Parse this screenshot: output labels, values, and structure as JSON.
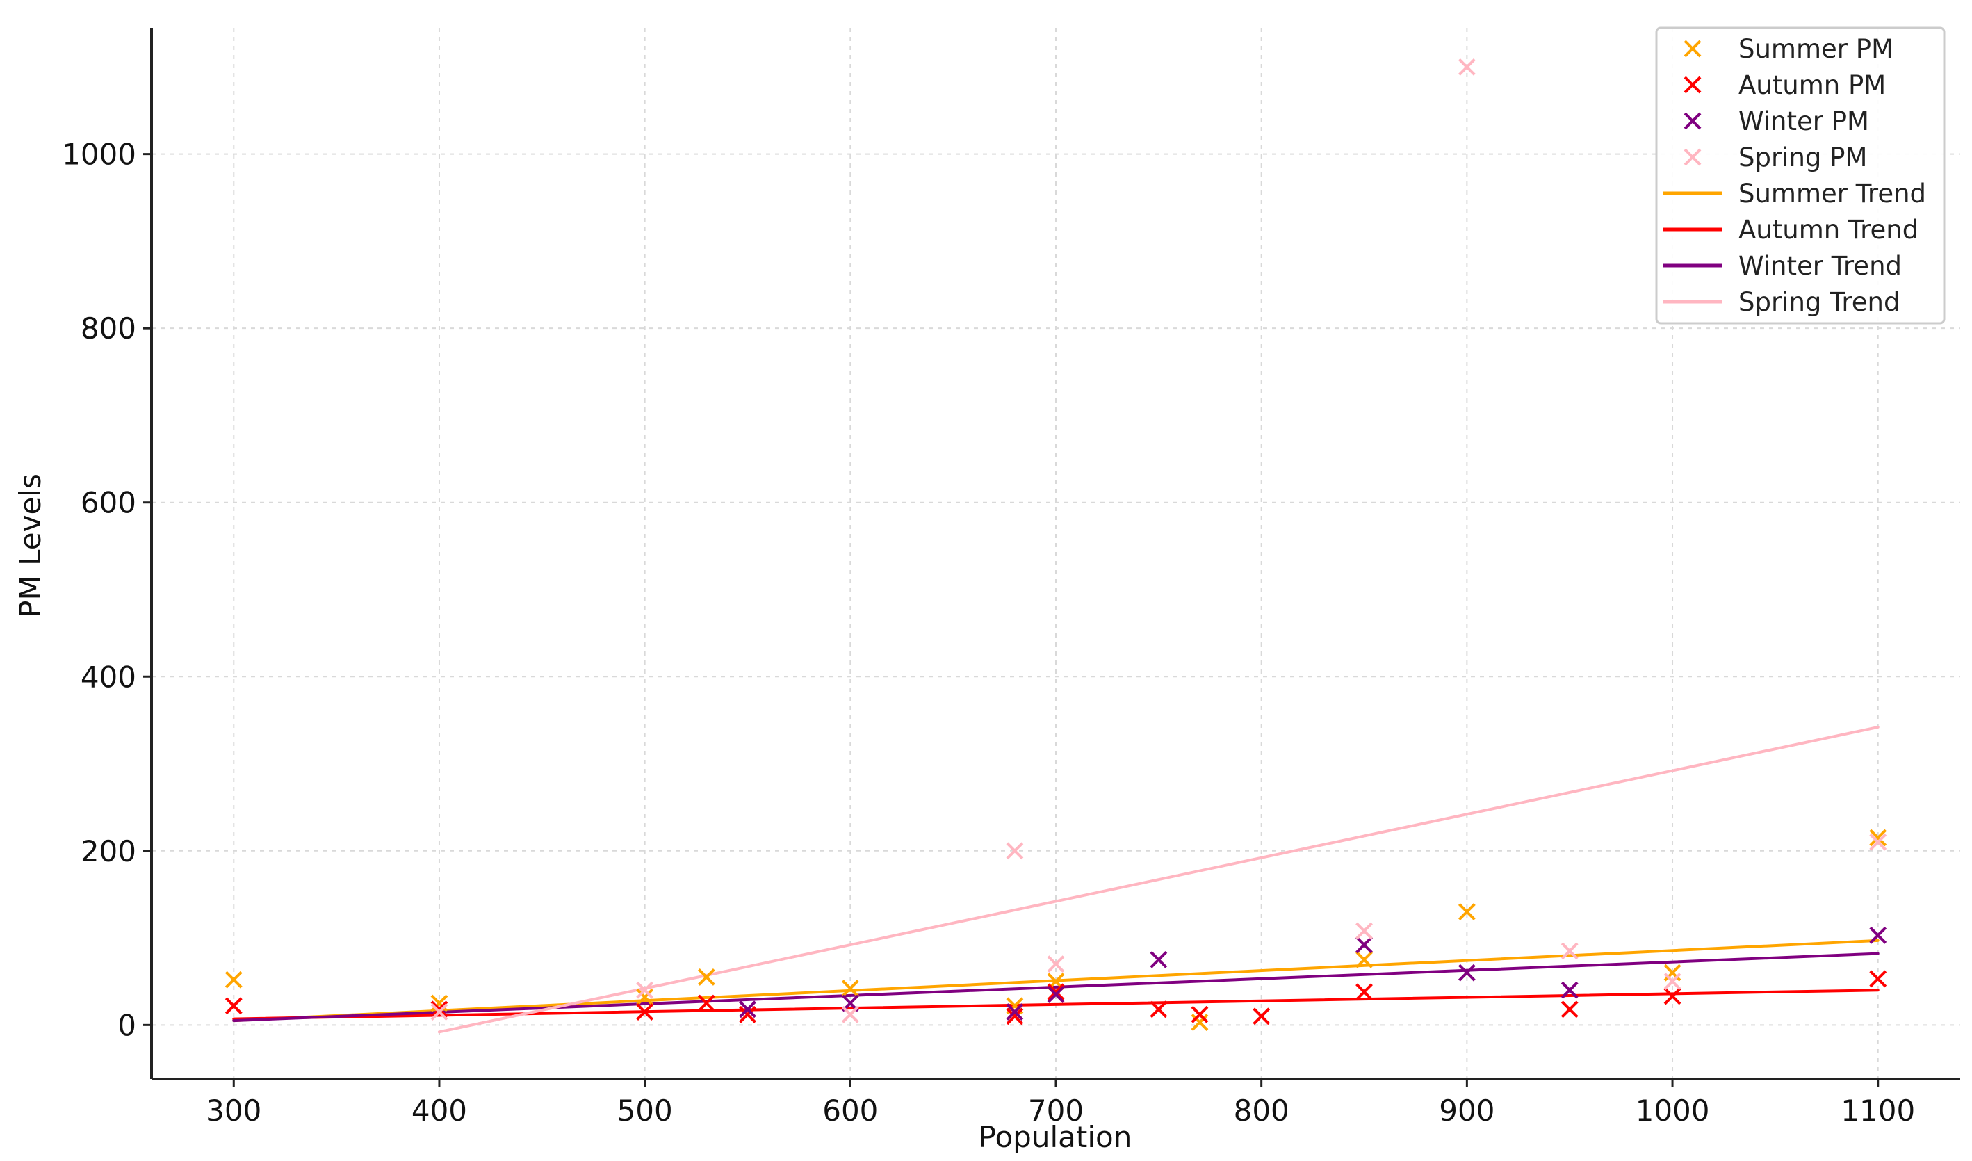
{
  "chart_data": {
    "type": "scatter",
    "title": "",
    "xlabel": "Population",
    "ylabel": "PM Levels",
    "xlim": [
      260,
      1140
    ],
    "ylim": [
      -62,
      1145
    ],
    "x_ticks": [
      300,
      400,
      500,
      600,
      700,
      800,
      900,
      1000,
      1100
    ],
    "y_ticks": [
      0,
      200,
      400,
      600,
      800,
      1000
    ],
    "grid": true,
    "legend_position": "top-right",
    "series": [
      {
        "name": "Summer PM",
        "kind": "scatter",
        "marker": "x",
        "color": "#FFA500",
        "points": [
          [
            300,
            52
          ],
          [
            400,
            25
          ],
          [
            500,
            32
          ],
          [
            530,
            55
          ],
          [
            600,
            42
          ],
          [
            680,
            22
          ],
          [
            700,
            50
          ],
          [
            770,
            3
          ],
          [
            850,
            75
          ],
          [
            900,
            130
          ],
          [
            1000,
            60
          ],
          [
            1100,
            215
          ]
        ]
      },
      {
        "name": "Autumn PM",
        "kind": "scatter",
        "marker": "x",
        "color": "#FF0000",
        "points": [
          [
            300,
            22
          ],
          [
            400,
            18
          ],
          [
            500,
            15
          ],
          [
            530,
            25
          ],
          [
            550,
            12
          ],
          [
            680,
            10
          ],
          [
            700,
            38
          ],
          [
            750,
            18
          ],
          [
            770,
            12
          ],
          [
            800,
            10
          ],
          [
            850,
            38
          ],
          [
            950,
            18
          ],
          [
            1000,
            33
          ],
          [
            1100,
            53
          ]
        ]
      },
      {
        "name": "Winter PM",
        "kind": "scatter",
        "marker": "x",
        "color": "#800080",
        "points": [
          [
            550,
            18
          ],
          [
            600,
            25
          ],
          [
            680,
            15
          ],
          [
            700,
            35
          ],
          [
            750,
            75
          ],
          [
            850,
            92
          ],
          [
            900,
            60
          ],
          [
            950,
            40
          ],
          [
            1100,
            103
          ]
        ]
      },
      {
        "name": "Spring PM",
        "kind": "scatter",
        "marker": "x",
        "color": "#FFB6C1",
        "points": [
          [
            400,
            15
          ],
          [
            500,
            40
          ],
          [
            600,
            12
          ],
          [
            680,
            200
          ],
          [
            700,
            70
          ],
          [
            850,
            108
          ],
          [
            900,
            1100
          ],
          [
            950,
            85
          ],
          [
            1000,
            50
          ],
          [
            1100,
            210
          ]
        ]
      },
      {
        "name": "Summer Trend",
        "kind": "line",
        "color": "#FFA500",
        "points": [
          [
            300,
            5
          ],
          [
            1100,
            97
          ]
        ]
      },
      {
        "name": "Autumn Trend",
        "kind": "line",
        "color": "#FF0000",
        "points": [
          [
            300,
            7
          ],
          [
            1100,
            40
          ]
        ]
      },
      {
        "name": "Winter Trend",
        "kind": "line",
        "color": "#800080",
        "points": [
          [
            300,
            5
          ],
          [
            1100,
            82
          ]
        ]
      },
      {
        "name": "Spring Trend",
        "kind": "line",
        "color": "#FFB6C1",
        "points": [
          [
            400,
            -8
          ],
          [
            1100,
            342
          ]
        ]
      }
    ]
  }
}
